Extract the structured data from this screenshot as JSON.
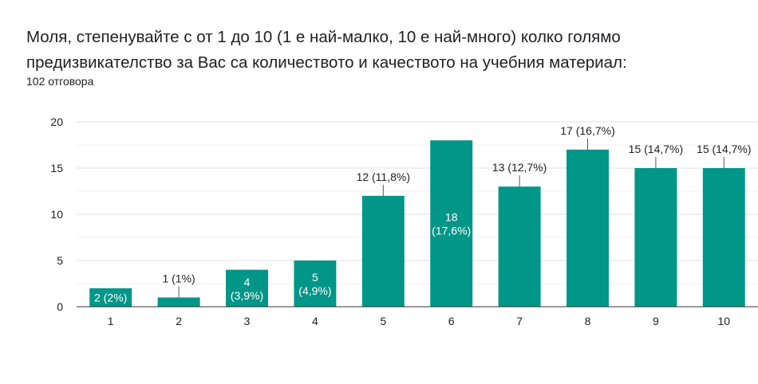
{
  "header": {
    "title": "Моля, степенувайте с от 1 до 10 (1 е най-малко, 10 е най-много) колко голямо предизвикателство за Вас са количеството и качеството на учебния материал:",
    "response_count": "102 отговора"
  },
  "chart_data": {
    "type": "bar",
    "categories": [
      "1",
      "2",
      "3",
      "4",
      "5",
      "6",
      "7",
      "8",
      "9",
      "10"
    ],
    "values": [
      2,
      1,
      4,
      5,
      12,
      18,
      13,
      17,
      15,
      15
    ],
    "data_labels": [
      "2 (2%)",
      "1 (1%)",
      "4 (3,9%)",
      "5 (4,9%)",
      "12 (11,8%)",
      "18 (17,6%)",
      "13 (12,7%)",
      "17 (16,7%)",
      "15 (14,7%)",
      "15 (14,7%)"
    ],
    "label_placement": [
      "inside",
      "outside",
      "inside",
      "inside",
      "outside",
      "inside",
      "outside",
      "outside",
      "outside",
      "outside"
    ],
    "y_ticks": [
      0,
      5,
      10,
      15,
      20
    ],
    "ylim": [
      0,
      20
    ],
    "grid": true,
    "bar_color": "#009688",
    "grid_color": "#e0e0e0",
    "minor_grid_color": "#f1f1f1",
    "label_color": "#202124",
    "inside_label_color": "#ffffff"
  }
}
